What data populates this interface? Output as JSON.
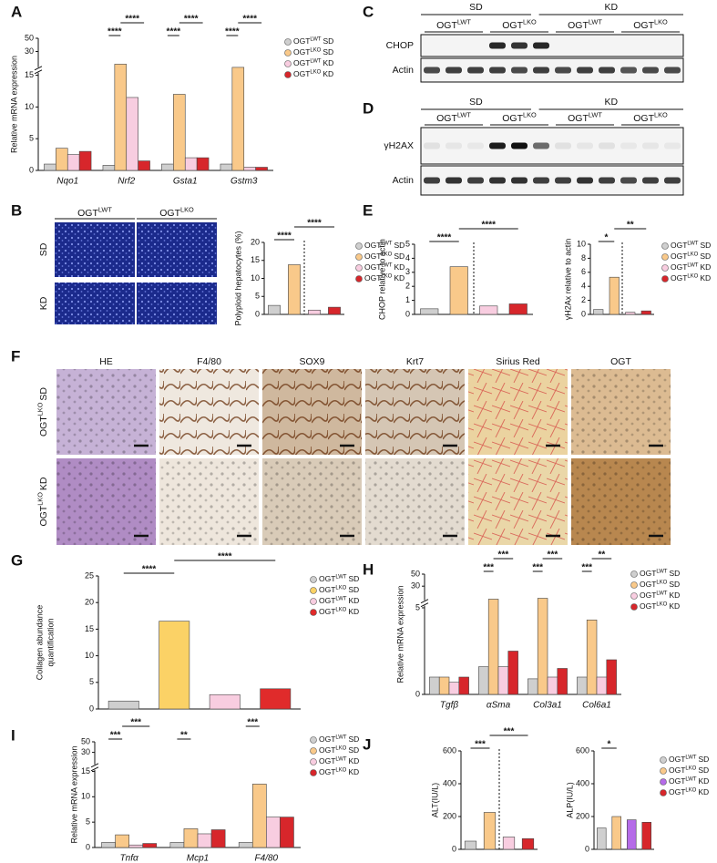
{
  "panel_letters": [
    "A",
    "B",
    "C",
    "D",
    "E",
    "F",
    "G",
    "H",
    "I",
    "J"
  ],
  "chart_data": [
    {
      "type": "bar",
      "ylabel": "Relative mRNA expression",
      "categories": [
        "Nqo1",
        "Nrf2",
        "Gsta1",
        "Gstm3"
      ],
      "ylim": [
        0,
        50
      ],
      "yticks": [
        0,
        5,
        10,
        15,
        30,
        50
      ],
      "axis_break": 15,
      "legend": true,
      "series": [
        {
          "name": "OGT",
          "sup": "LWT",
          "group": "SD",
          "color": "#cfcfcf",
          "values": [
            1,
            0.8,
            1,
            1
          ]
        },
        {
          "name": "OGT",
          "sup": "LKO",
          "group": "SD",
          "color": "#f9c98a",
          "values": [
            3.5,
            22,
            12,
            20
          ]
        },
        {
          "name": "OGT",
          "sup": "LWT",
          "group": "KD",
          "color": "#f8cde0",
          "values": [
            2.5,
            11.5,
            2,
            0.5
          ]
        },
        {
          "name": "OGT",
          "sup": "LKO",
          "group": "KD",
          "color": "#d7262b",
          "values": [
            3,
            1.5,
            2,
            0.5
          ]
        }
      ],
      "annotations": [
        {
          "text": "****"
        },
        {
          "text": "****"
        },
        {
          "text": "****"
        },
        {
          "text": "****"
        },
        {
          "text": "****"
        },
        {
          "text": "****"
        }
      ]
    },
    {
      "type": "bar",
      "ylabel": "Polyploid hepatocytes (%)",
      "ylim": [
        0,
        20
      ],
      "yticks": [
        0,
        5,
        10,
        15,
        20
      ],
      "legend": true,
      "series": [
        {
          "name": "OGT",
          "sup": "LWT",
          "group": "SD",
          "color": "#cfcfcf",
          "values": [
            2.5
          ]
        },
        {
          "name": "OGT",
          "sup": "LKO",
          "group": "SD",
          "color": "#f9c98a",
          "values": [
            13.8
          ]
        },
        {
          "name": "OGT",
          "sup": "LWT",
          "group": "KD",
          "color": "#f8cde0",
          "values": [
            1.2
          ]
        },
        {
          "name": "OGT",
          "sup": "LKO",
          "group": "KD",
          "color": "#d7262b",
          "values": [
            2
          ]
        }
      ],
      "annotations": [
        {
          "text": "****"
        },
        {
          "text": "****"
        }
      ]
    },
    {
      "type": "bar",
      "ylabel": "CHOP relative to actin",
      "ylim": [
        0,
        5
      ],
      "yticks": [
        0,
        1,
        2,
        3,
        4,
        5
      ],
      "legend": false,
      "series": [
        {
          "name": "OGT",
          "sup": "LWT",
          "group": "SD",
          "color": "#cfcfcf",
          "values": [
            0.4
          ]
        },
        {
          "name": "OGT",
          "sup": "LKO",
          "group": "SD",
          "color": "#f9c98a",
          "values": [
            3.4
          ]
        },
        {
          "name": "OGT",
          "sup": "LWT",
          "group": "KD",
          "color": "#f8cde0",
          "values": [
            0.6
          ]
        },
        {
          "name": "OGT",
          "sup": "LKO",
          "group": "KD",
          "color": "#d7262b",
          "values": [
            0.75
          ]
        }
      ],
      "annotations": [
        {
          "text": "****"
        },
        {
          "text": "****"
        }
      ]
    },
    {
      "type": "bar",
      "ylabel": "γH2Ax relative to actin",
      "ylim": [
        0,
        10
      ],
      "yticks": [
        0,
        2,
        4,
        6,
        8,
        10
      ],
      "legend": true,
      "series": [
        {
          "name": "OGT",
          "sup": "LWT",
          "group": "SD",
          "color": "#cfcfcf",
          "values": [
            0.7
          ]
        },
        {
          "name": "OGT",
          "sup": "LKO",
          "group": "SD",
          "color": "#f9c98a",
          "values": [
            5.3
          ]
        },
        {
          "name": "OGT",
          "sup": "LWT",
          "group": "KD",
          "color": "#f8cde0",
          "values": [
            0.3
          ]
        },
        {
          "name": "OGT",
          "sup": "LKO",
          "group": "KD",
          "color": "#d7262b",
          "values": [
            0.5
          ]
        }
      ],
      "annotations": [
        {
          "text": "*"
        },
        {
          "text": "**"
        }
      ]
    },
    {
      "type": "bar",
      "ylabel": [
        "Collagen abundance",
        "quantification"
      ],
      "ylim": [
        0,
        25
      ],
      "yticks": [
        0,
        5,
        10,
        15,
        20,
        25
      ],
      "legend": true,
      "series": [
        {
          "name": "OGT",
          "sup": "LWT",
          "group": "SD",
          "color": "#cfcfcf",
          "values": [
            1.5
          ]
        },
        {
          "name": "OGT",
          "sup": "LKO",
          "group": "SD",
          "color": "#fbd266",
          "values": [
            16.5
          ]
        },
        {
          "name": "OGT",
          "sup": "LWT",
          "group": "KD",
          "color": "#f8cde0",
          "values": [
            2.7
          ]
        },
        {
          "name": "OGT",
          "sup": "LKO",
          "group": "KD",
          "color": "#e02b2b",
          "values": [
            3.8
          ]
        }
      ],
      "annotations": [
        {
          "text": "****"
        },
        {
          "text": "****"
        }
      ]
    },
    {
      "type": "bar",
      "ylabel": "Relative mRNA expression",
      "categories": [
        "Tgfβ",
        "αSma",
        "Col3a1",
        "Col6a1"
      ],
      "ylim": [
        0,
        50
      ],
      "yticks": [
        0,
        5,
        30,
        50
      ],
      "axis_break": 5,
      "legend": true,
      "series": [
        {
          "name": "OGT",
          "sup": "LWT",
          "group": "SD",
          "color": "#cfcfcf",
          "values": [
            1,
            1.6,
            0.9,
            1
          ]
        },
        {
          "name": "OGT",
          "sup": "LKO",
          "group": "SD",
          "color": "#f9c98a",
          "values": [
            1,
            15,
            16,
            4.3
          ]
        },
        {
          "name": "OGT",
          "sup": "LWT",
          "group": "KD",
          "color": "#f8cde0",
          "values": [
            0.7,
            1.6,
            1,
            1
          ]
        },
        {
          "name": "OGT",
          "sup": "LKO",
          "group": "KD",
          "color": "#d7262b",
          "values": [
            1,
            2.5,
            1.5,
            2
          ]
        }
      ],
      "annotations": [
        {
          "text": "***"
        },
        {
          "text": "***"
        },
        {
          "text": "***"
        },
        {
          "text": "***"
        },
        {
          "text": "***"
        },
        {
          "text": "**"
        }
      ]
    },
    {
      "type": "bar",
      "ylabel": "Relative mRNA expression",
      "categories": [
        "Tnfα",
        "Mcp1",
        "F4/80"
      ],
      "ylim": [
        0,
        50
      ],
      "yticks": [
        0,
        5,
        10,
        15,
        30,
        50
      ],
      "axis_break": 15,
      "legend": true,
      "series": [
        {
          "name": "OGT",
          "sup": "LWT",
          "group": "SD",
          "color": "#cfcfcf",
          "values": [
            1,
            1,
            1
          ]
        },
        {
          "name": "OGT",
          "sup": "LKO",
          "group": "SD",
          "color": "#f9c98a",
          "values": [
            2.5,
            3.7,
            12.5
          ]
        },
        {
          "name": "OGT",
          "sup": "LWT",
          "group": "KD",
          "color": "#f8cde0",
          "values": [
            0.5,
            2.7,
            6
          ]
        },
        {
          "name": "OGT",
          "sup": "LKO",
          "group": "KD",
          "color": "#d7262b",
          "values": [
            0.8,
            3.5,
            6
          ]
        }
      ],
      "annotations": [
        {
          "text": "***"
        },
        {
          "text": "***"
        },
        {
          "text": "**"
        },
        {
          "text": "***"
        }
      ]
    },
    {
      "type": "bar",
      "ylabel": "ALT(IU/L)",
      "ylim": [
        0,
        600
      ],
      "yticks": [
        0,
        200,
        400,
        600
      ],
      "legend": false,
      "series": [
        {
          "name": "OGT",
          "sup": "LWT",
          "group": "SD",
          "color": "#cfcfcf",
          "values": [
            50
          ]
        },
        {
          "name": "OGT",
          "sup": "LKO",
          "group": "SD",
          "color": "#f9c98a",
          "values": [
            225
          ]
        },
        {
          "name": "OGT",
          "sup": "LWT",
          "group": "KD",
          "color": "#f8cde0",
          "values": [
            75
          ]
        },
        {
          "name": "OGT",
          "sup": "LKO",
          "group": "KD",
          "color": "#d7262b",
          "values": [
            65
          ]
        }
      ],
      "annotations": [
        {
          "text": "***"
        },
        {
          "text": "***"
        }
      ]
    },
    {
      "type": "bar",
      "ylabel": "ALP(IU/L)",
      "ylim": [
        0,
        600
      ],
      "yticks": [
        0,
        200,
        400,
        600
      ],
      "legend": true,
      "series": [
        {
          "name": "OGT",
          "sup": "LWT",
          "group": "SD",
          "color": "#cfcfcf",
          "values": [
            130
          ]
        },
        {
          "name": "OGT",
          "sup": "LKO",
          "group": "SD",
          "color": "#f9c98a",
          "values": [
            200
          ]
        },
        {
          "name": "OGT",
          "sup": "LWT",
          "group": "KD",
          "color": "#b56be8",
          "values": [
            180
          ]
        },
        {
          "name": "OGT",
          "sup": "LKO",
          "group": "KD",
          "color": "#d7262b",
          "values": [
            165
          ]
        }
      ],
      "annotations": [
        {
          "text": "*"
        }
      ]
    }
  ],
  "blots": [
    {
      "diets": [
        "SD",
        "KD"
      ],
      "genotypes": [
        {
          "name": "OGT",
          "sup": "LWT"
        },
        {
          "name": "OGT",
          "sup": "LKO"
        },
        {
          "name": "OGT",
          "sup": "LWT"
        },
        {
          "name": "OGT",
          "sup": "LKO"
        }
      ],
      "rows": [
        "CHOP",
        "Actin"
      ]
    },
    {
      "diets": [
        "SD",
        "KD"
      ],
      "genotypes": [
        {
          "name": "OGT",
          "sup": "LWT"
        },
        {
          "name": "OGT",
          "sup": "LKO"
        },
        {
          "name": "OGT",
          "sup": "LWT"
        },
        {
          "name": "OGT",
          "sup": "LKO"
        }
      ],
      "rows": [
        "γH2AX",
        "Actin"
      ]
    }
  ],
  "micrographs": [
    {
      "columns": [
        {
          "name": "OGT",
          "sup": "LWT"
        },
        {
          "name": "OGT",
          "sup": "LKO"
        }
      ],
      "rows": [
        "SD",
        "KD"
      ]
    },
    {
      "columns": [
        "HE",
        "F4/80",
        "SOX9",
        "Krt7",
        "Sirius Red",
        "OGT"
      ],
      "rows": [
        {
          "name": "OGT",
          "sup": "LKO",
          "group": "SD"
        },
        {
          "name": "OGT",
          "sup": "LKO",
          "group": "KD"
        }
      ]
    }
  ]
}
